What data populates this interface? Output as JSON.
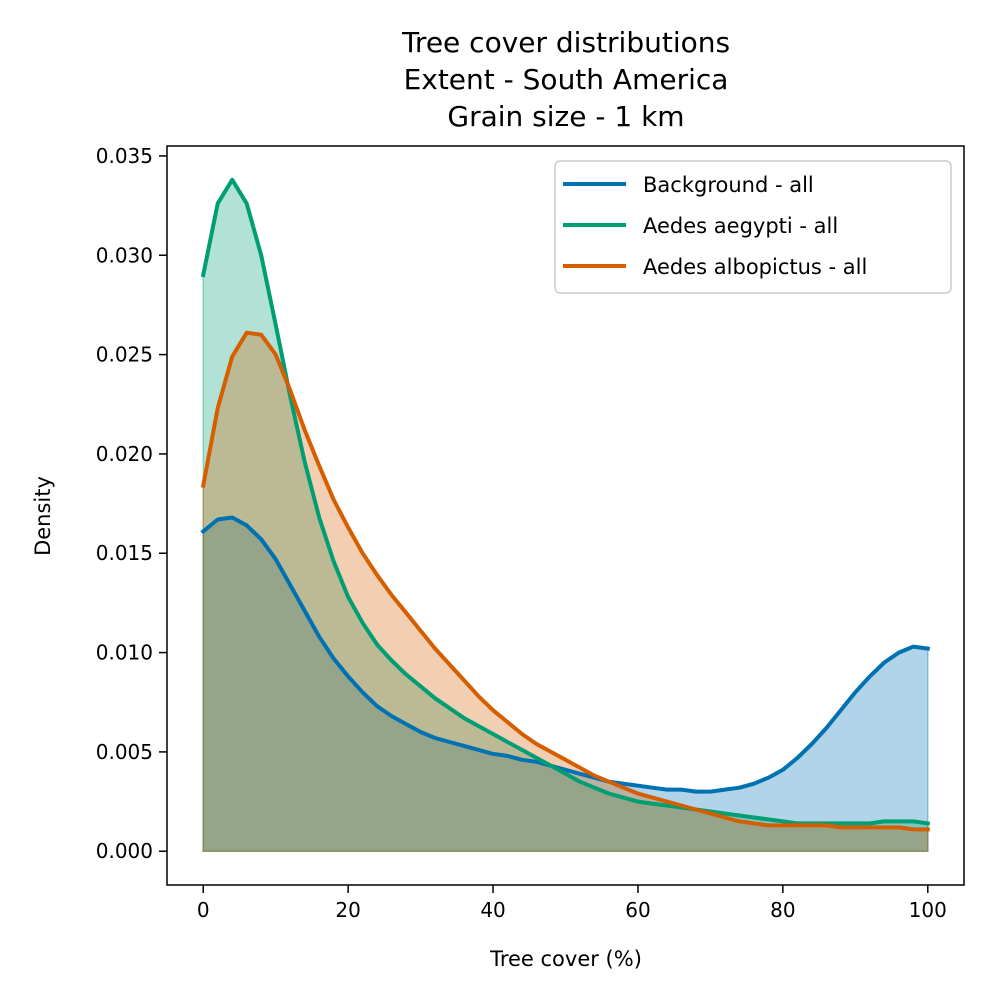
{
  "chart_data": {
    "type": "area",
    "title_lines": [
      "Tree cover distributions",
      "Extent - South America",
      "Grain size - 1 km"
    ],
    "xlabel": "Tree cover (%)",
    "ylabel": "Density",
    "xlim": [
      -5,
      105
    ],
    "ylim": [
      -0.0017,
      0.0355
    ],
    "x_ticks": [
      0,
      20,
      40,
      60,
      80,
      100
    ],
    "x_tick_labels": [
      "0",
      "20",
      "40",
      "60",
      "80",
      "100"
    ],
    "y_ticks": [
      0,
      0.005,
      0.01,
      0.015,
      0.02,
      0.025,
      0.03,
      0.035
    ],
    "y_tick_labels": [
      "0.000",
      "0.005",
      "0.010",
      "0.015",
      "0.020",
      "0.025",
      "0.030",
      "0.035"
    ],
    "grid": false,
    "legend_position": "top-right",
    "series": [
      {
        "name": "Background - all",
        "color": "#0072b2",
        "x": [
          0,
          2,
          4,
          6,
          8,
          10,
          12,
          14,
          16,
          18,
          20,
          22,
          24,
          26,
          28,
          30,
          32,
          34,
          36,
          38,
          40,
          42,
          44,
          46,
          48,
          50,
          52,
          54,
          56,
          58,
          60,
          62,
          64,
          66,
          68,
          70,
          72,
          74,
          76,
          78,
          80,
          82,
          84,
          86,
          88,
          90,
          92,
          94,
          96,
          98,
          100
        ],
        "values": [
          0.0161,
          0.0167,
          0.0168,
          0.0164,
          0.0157,
          0.0147,
          0.0134,
          0.0121,
          0.0108,
          0.0097,
          0.0088,
          0.008,
          0.0073,
          0.0068,
          0.0064,
          0.006,
          0.0057,
          0.0055,
          0.0053,
          0.0051,
          0.0049,
          0.0048,
          0.0046,
          0.0045,
          0.0043,
          0.0041,
          0.0039,
          0.0037,
          0.0035,
          0.0034,
          0.0033,
          0.0032,
          0.0031,
          0.0031,
          0.003,
          0.003,
          0.0031,
          0.0032,
          0.0034,
          0.0037,
          0.0041,
          0.0047,
          0.0054,
          0.0062,
          0.0071,
          0.008,
          0.0088,
          0.0095,
          0.01,
          0.0103,
          0.0102
        ]
      },
      {
        "name": "Aedes aegypti - all",
        "color": "#009e73",
        "x": [
          0,
          2,
          4,
          6,
          8,
          10,
          12,
          14,
          16,
          18,
          20,
          22,
          24,
          26,
          28,
          30,
          32,
          34,
          36,
          38,
          40,
          42,
          44,
          46,
          48,
          50,
          52,
          54,
          56,
          58,
          60,
          62,
          64,
          66,
          68,
          70,
          72,
          74,
          76,
          78,
          80,
          82,
          84,
          86,
          88,
          90,
          92,
          94,
          96,
          98,
          100
        ],
        "values": [
          0.029,
          0.0326,
          0.0338,
          0.0326,
          0.03,
          0.0265,
          0.0229,
          0.0196,
          0.0168,
          0.0146,
          0.0128,
          0.0115,
          0.0104,
          0.0096,
          0.0089,
          0.0083,
          0.0077,
          0.0072,
          0.0067,
          0.0063,
          0.0059,
          0.0055,
          0.0051,
          0.0047,
          0.0043,
          0.0039,
          0.0035,
          0.0032,
          0.0029,
          0.0027,
          0.0025,
          0.0024,
          0.0023,
          0.0022,
          0.0021,
          0.002,
          0.0019,
          0.0018,
          0.0017,
          0.0016,
          0.0015,
          0.0014,
          0.0014,
          0.0014,
          0.0014,
          0.0014,
          0.0014,
          0.0015,
          0.0015,
          0.0015,
          0.0014
        ]
      },
      {
        "name": "Aedes albopictus - all",
        "color": "#d55e00",
        "x": [
          0,
          2,
          4,
          6,
          8,
          10,
          12,
          14,
          16,
          18,
          20,
          22,
          24,
          26,
          28,
          30,
          32,
          34,
          36,
          38,
          40,
          42,
          44,
          46,
          48,
          50,
          52,
          54,
          56,
          58,
          60,
          62,
          64,
          66,
          68,
          70,
          72,
          74,
          76,
          78,
          80,
          82,
          84,
          86,
          88,
          90,
          92,
          94,
          96,
          98,
          100
        ],
        "values": [
          0.0184,
          0.0223,
          0.0249,
          0.0261,
          0.026,
          0.025,
          0.0232,
          0.0212,
          0.0194,
          0.0177,
          0.0163,
          0.015,
          0.0139,
          0.0129,
          0.012,
          0.0111,
          0.0102,
          0.0094,
          0.0086,
          0.0078,
          0.0071,
          0.0065,
          0.0059,
          0.0054,
          0.005,
          0.0046,
          0.0042,
          0.0038,
          0.0035,
          0.0032,
          0.0029,
          0.0027,
          0.0025,
          0.0023,
          0.0021,
          0.0019,
          0.0017,
          0.0015,
          0.0014,
          0.0013,
          0.0013,
          0.0013,
          0.0013,
          0.0013,
          0.0012,
          0.0012,
          0.0012,
          0.0012,
          0.0012,
          0.0011,
          0.0011
        ]
      }
    ]
  }
}
